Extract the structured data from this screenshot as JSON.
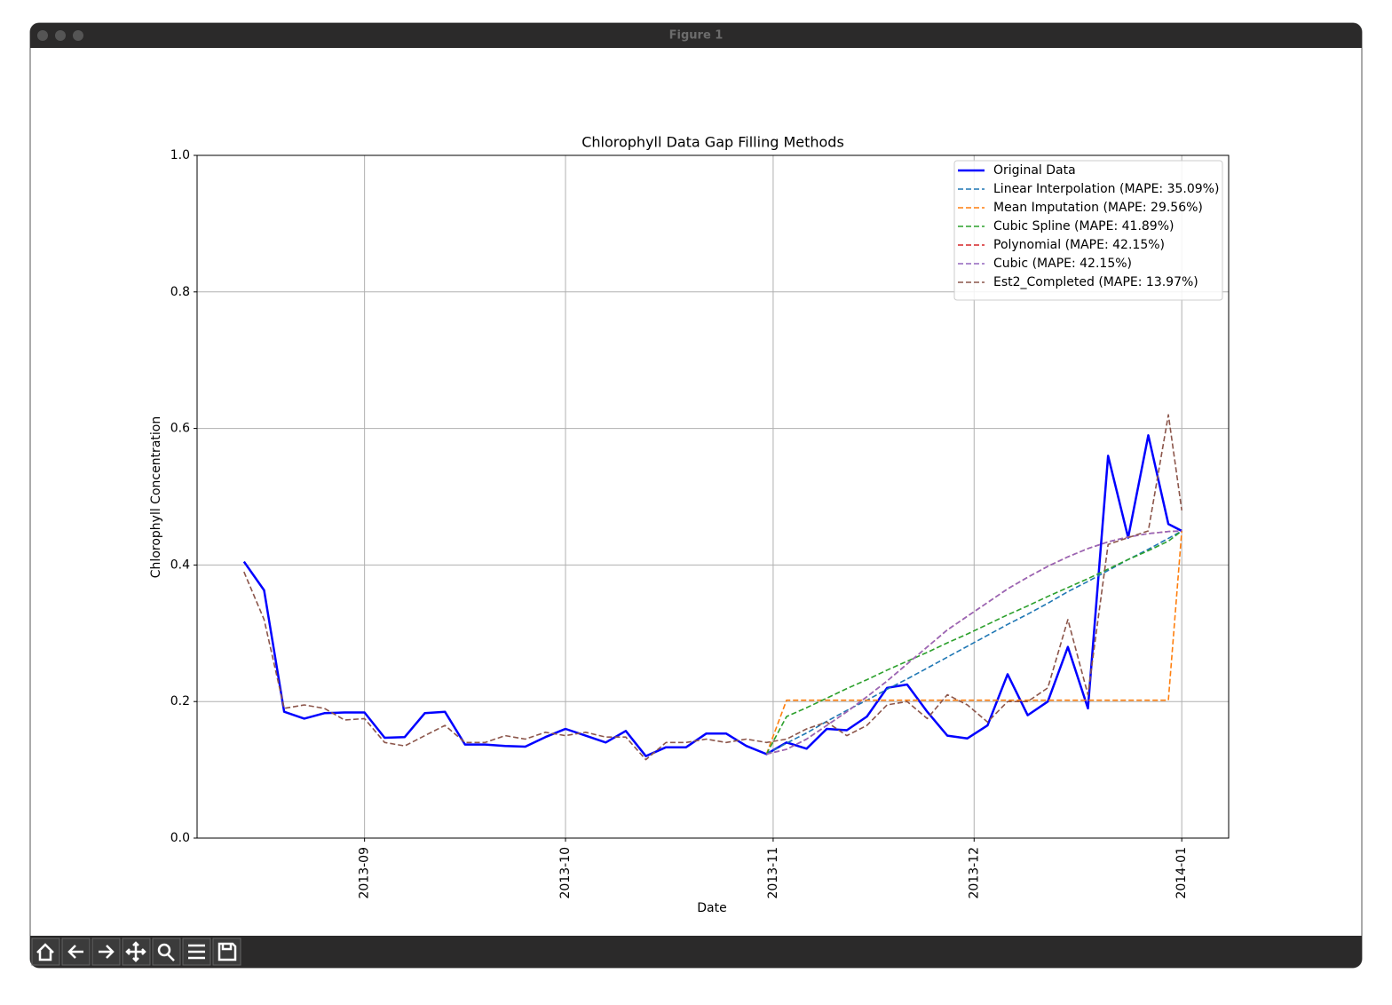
{
  "window_title": "Figure 1",
  "chart_data": {
    "type": "line",
    "title": "Chlorophyll Data Gap Filling Methods",
    "x_label": "Date",
    "y_label": "Chlorophyll Concentration",
    "x": [
      "2013-08-14",
      "2013-08-17",
      "2013-08-20",
      "2013-08-23",
      "2013-08-26",
      "2013-08-29",
      "2013-09-01",
      "2013-09-04",
      "2013-09-07",
      "2013-09-10",
      "2013-09-13",
      "2013-09-16",
      "2013-09-19",
      "2013-09-22",
      "2013-09-25",
      "2013-09-28",
      "2013-10-01",
      "2013-10-04",
      "2013-10-07",
      "2013-10-10",
      "2013-10-13",
      "2013-10-16",
      "2013-10-19",
      "2013-10-22",
      "2013-10-25",
      "2013-10-28",
      "2013-10-31",
      "2013-11-03",
      "2013-11-06",
      "2013-11-09",
      "2013-11-12",
      "2013-11-15",
      "2013-11-18",
      "2013-11-21",
      "2013-11-24",
      "2013-11-27",
      "2013-11-30",
      "2013-12-03",
      "2013-12-06",
      "2013-12-09",
      "2013-12-12",
      "2013-12-15",
      "2013-12-18",
      "2013-12-21",
      "2013-12-24",
      "2013-12-27",
      "2013-12-30",
      "2014-01-01"
    ],
    "xlim": [
      "2013-08-07",
      "2014-01-08"
    ],
    "xticks": [
      {
        "value": "2013-09-01",
        "label": "2013-09"
      },
      {
        "value": "2013-10-01",
        "label": "2013-10"
      },
      {
        "value": "2013-11-01",
        "label": "2013-11"
      },
      {
        "value": "2013-12-01",
        "label": "2013-12"
      },
      {
        "value": "2014-01-01",
        "label": "2014-01"
      }
    ],
    "ylim": [
      0,
      1
    ],
    "yticks": [
      {
        "value": 0,
        "label": "0.0"
      },
      0.2,
      0.4,
      0.6,
      0.8,
      {
        "value": 1,
        "label": "1.0"
      }
    ],
    "grid": true,
    "legend": "upper right",
    "series": [
      {
        "name": "Original Data",
        "color": "#0000ff",
        "style": "solid",
        "values": [
          0.405,
          0.363,
          0.185,
          0.175,
          0.183,
          0.184,
          0.184,
          0.147,
          0.148,
          0.183,
          0.185,
          0.137,
          0.137,
          0.135,
          0.134,
          0.148,
          0.16,
          0.15,
          0.14,
          0.157,
          0.12,
          0.133,
          0.133,
          0.153,
          0.153,
          0.135,
          0.123,
          0.14,
          0.131,
          0.16,
          0.158,
          0.178,
          0.22,
          0.225,
          0.185,
          0.15,
          0.146,
          0.165,
          0.24,
          0.18,
          0.2,
          0.28,
          0.19,
          0.56,
          0.44,
          0.59,
          0.46,
          0.45
        ]
      },
      {
        "name": "Linear Interpolation (MAPE: 35.09%)",
        "color": "#1f77b4",
        "style": "dashed",
        "values": [
          null,
          null,
          null,
          null,
          null,
          null,
          null,
          null,
          null,
          null,
          null,
          null,
          null,
          null,
          null,
          null,
          null,
          null,
          null,
          null,
          null,
          null,
          null,
          null,
          null,
          null,
          0.123,
          0.139,
          0.154,
          0.171,
          0.187,
          0.202,
          0.218,
          0.233,
          0.249,
          0.265,
          0.281,
          0.297,
          0.313,
          0.328,
          0.344,
          0.361,
          0.376,
          0.392,
          0.408,
          0.423,
          0.439,
          0.45
        ]
      },
      {
        "name": "Mean Imputation (MAPE: 29.56%)",
        "color": "#ff7f0e",
        "style": "dashed",
        "values": [
          null,
          null,
          null,
          null,
          null,
          null,
          null,
          null,
          null,
          null,
          null,
          null,
          null,
          null,
          null,
          null,
          null,
          null,
          null,
          null,
          null,
          null,
          null,
          null,
          null,
          null,
          0.123,
          0.202,
          0.202,
          0.202,
          0.202,
          0.202,
          0.202,
          0.202,
          0.202,
          0.202,
          0.202,
          0.202,
          0.202,
          0.202,
          0.202,
          0.202,
          0.202,
          0.202,
          0.202,
          0.202,
          0.202,
          0.45
        ]
      },
      {
        "name": "Cubic Spline (MAPE: 41.89%)",
        "color": "#2ca02c",
        "style": "dashed",
        "values": [
          null,
          null,
          null,
          null,
          null,
          null,
          null,
          null,
          null,
          null,
          null,
          null,
          null,
          null,
          null,
          null,
          null,
          null,
          null,
          null,
          null,
          null,
          null,
          null,
          null,
          null,
          0.123,
          0.178,
          0.191,
          0.205,
          0.219,
          0.232,
          0.246,
          0.259,
          0.272,
          0.286,
          0.299,
          0.313,
          0.327,
          0.34,
          0.354,
          0.367,
          0.38,
          0.394,
          0.408,
          0.421,
          0.435,
          0.45
        ]
      },
      {
        "name": "Polynomial (MAPE: 42.15%)",
        "color": "#d62728",
        "style": "dashed",
        "values": [
          null,
          null,
          null,
          null,
          null,
          null,
          null,
          null,
          null,
          null,
          null,
          null,
          null,
          null,
          null,
          null,
          null,
          null,
          null,
          null,
          null,
          null,
          null,
          null,
          null,
          null,
          0.123,
          0.13,
          0.145,
          0.165,
          0.185,
          0.207,
          0.23,
          0.255,
          0.28,
          0.305,
          0.325,
          0.345,
          0.365,
          0.382,
          0.398,
          0.412,
          0.424,
          0.434,
          0.441,
          0.446,
          0.449,
          0.45
        ]
      },
      {
        "name": "Cubic (MAPE: 42.15%)",
        "color": "#9467bd",
        "style": "dashed",
        "values": [
          null,
          null,
          null,
          null,
          null,
          null,
          null,
          null,
          null,
          null,
          null,
          null,
          null,
          null,
          null,
          null,
          null,
          null,
          null,
          null,
          null,
          null,
          null,
          null,
          null,
          null,
          0.123,
          0.13,
          0.145,
          0.165,
          0.185,
          0.207,
          0.23,
          0.255,
          0.28,
          0.305,
          0.325,
          0.345,
          0.365,
          0.382,
          0.398,
          0.412,
          0.424,
          0.434,
          0.441,
          0.446,
          0.449,
          0.45
        ]
      },
      {
        "name": "Est2_Completed (MAPE: 13.97%)",
        "color": "#8c564b",
        "style": "dashed",
        "values": [
          0.39,
          0.32,
          0.19,
          0.195,
          0.19,
          0.173,
          0.175,
          0.14,
          0.135,
          0.15,
          0.165,
          0.14,
          0.14,
          0.15,
          0.145,
          0.155,
          0.15,
          0.155,
          0.148,
          0.148,
          0.115,
          0.14,
          0.14,
          0.145,
          0.14,
          0.145,
          0.14,
          0.145,
          0.16,
          0.17,
          0.15,
          0.165,
          0.195,
          0.2,
          0.175,
          0.21,
          0.195,
          0.17,
          0.2,
          0.2,
          0.22,
          0.32,
          0.21,
          0.43,
          0.44,
          0.45,
          0.62,
          0.48
        ]
      }
    ]
  }
}
